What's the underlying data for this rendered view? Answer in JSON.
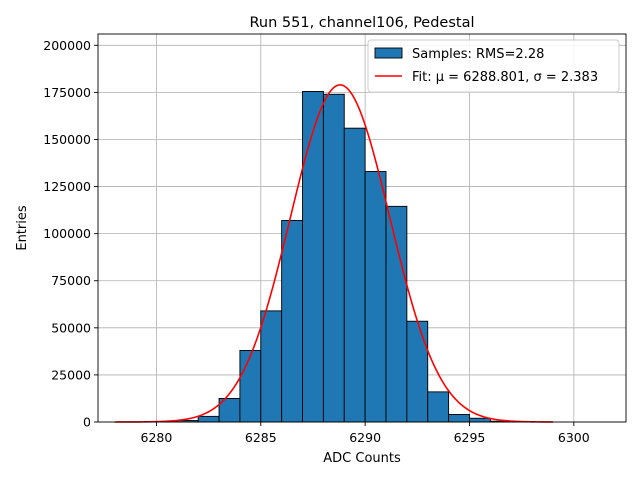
{
  "chart_data": {
    "type": "bar",
    "title": "Run 551, channel106, Pedestal",
    "xlabel": "ADC Counts",
    "ylabel": "Entries",
    "xlim": [
      6277.2,
      6302.5
    ],
    "ylim": [
      0,
      206000
    ],
    "xticks": [
      6280,
      6285,
      6290,
      6295,
      6300
    ],
    "yticks": [
      0,
      25000,
      50000,
      75000,
      100000,
      125000,
      150000,
      175000,
      200000
    ],
    "grid": true,
    "legend_position": "top-right",
    "bin_width": 1,
    "bins": [
      {
        "x0": 6280,
        "count": 200
      },
      {
        "x0": 6281,
        "count": 800
      },
      {
        "x0": 6282,
        "count": 3000
      },
      {
        "x0": 6283,
        "count": 12500
      },
      {
        "x0": 6284,
        "count": 38000
      },
      {
        "x0": 6285,
        "count": 59000
      },
      {
        "x0": 6286,
        "count": 107000
      },
      {
        "x0": 6287,
        "count": 175500
      },
      {
        "x0": 6288,
        "count": 174000
      },
      {
        "x0": 6289,
        "count": 156000
      },
      {
        "x0": 6290,
        "count": 133000
      },
      {
        "x0": 6291,
        "count": 114500
      },
      {
        "x0": 6292,
        "count": 53500
      },
      {
        "x0": 6293,
        "count": 16000
      },
      {
        "x0": 6294,
        "count": 4000
      },
      {
        "x0": 6295,
        "count": 2000
      },
      {
        "x0": 6296,
        "count": 400
      },
      {
        "x0": 6297,
        "count": 100
      }
    ],
    "series": [
      {
        "name": "Samples: RMS=2.28",
        "kind": "histogram",
        "color": "#1f77b4",
        "edgecolor": "#000000"
      },
      {
        "name": "Fit: μ = 6288.801, σ = 2.383",
        "kind": "gaussian",
        "color": "#ff0000",
        "mu": 6288.801,
        "sigma": 2.383,
        "amplitude": 179000,
        "x_range": [
          6278,
          6299
        ]
      }
    ]
  }
}
